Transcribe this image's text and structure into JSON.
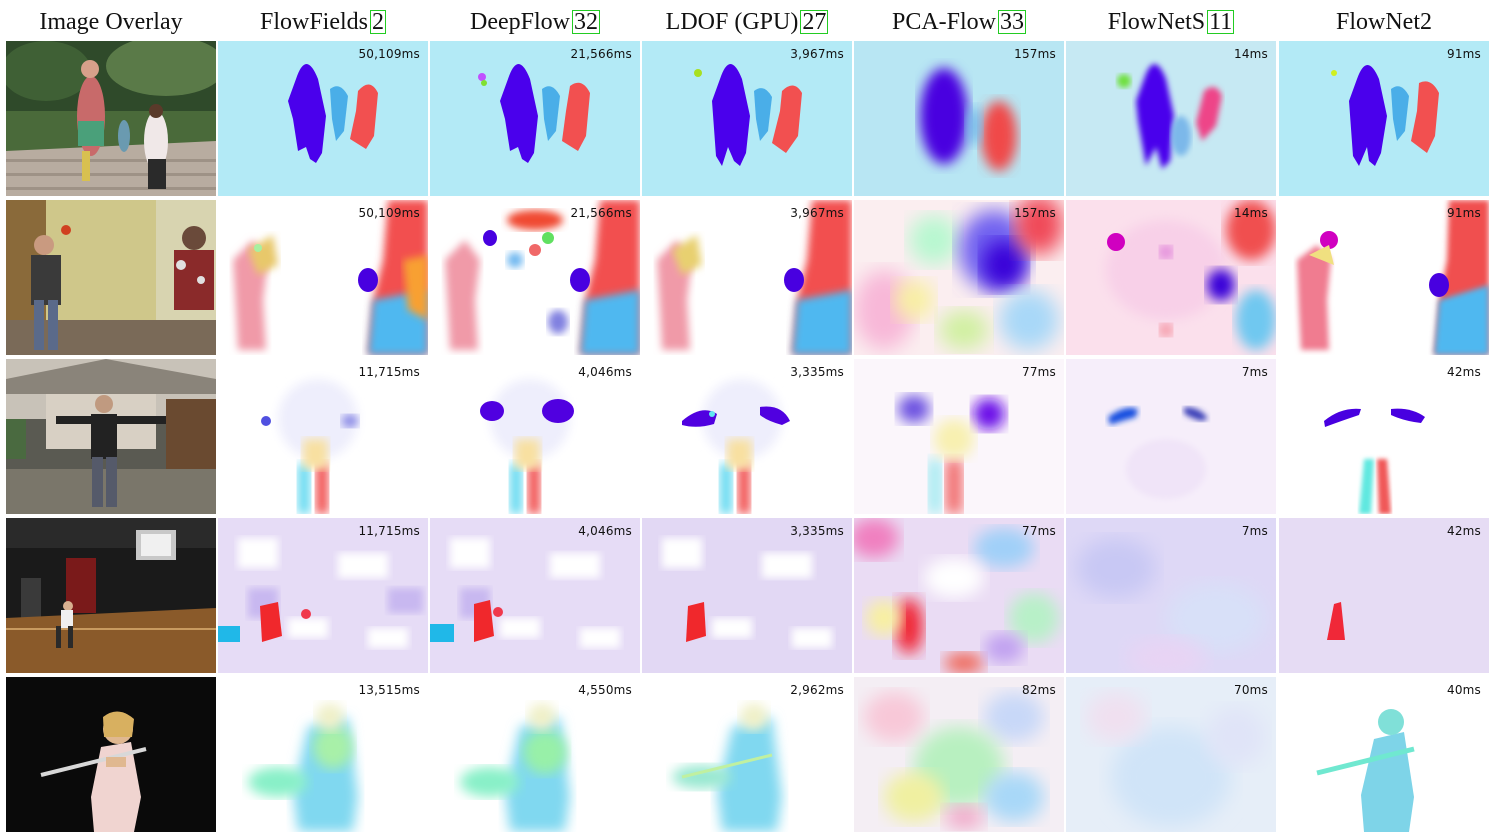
{
  "columns": [
    {
      "title": "Image Overlay",
      "ref": ""
    },
    {
      "title": "FlowFields ",
      "ref": "2"
    },
    {
      "title": "DeepFlow ",
      "ref": "32"
    },
    {
      "title": "LDOF (GPU) ",
      "ref": "27"
    },
    {
      "title": "PCA-Flow ",
      "ref": "33"
    },
    {
      "title": "FlowNetS ",
      "ref": "11"
    },
    {
      "title": "FlowNet2",
      "ref": ""
    }
  ],
  "rows": [
    {
      "scene": "children-garden",
      "times": [
        "50,109ms",
        "21,566ms",
        "3,967ms",
        "157ms",
        "14ms",
        "91ms"
      ]
    },
    {
      "scene": "juggler-hallway",
      "times": [
        "50,109ms",
        "21,566ms",
        "3,967ms",
        "157ms",
        "14ms",
        "91ms"
      ]
    },
    {
      "scene": "man-arms-out",
      "times": [
        "11,715ms",
        "4,046ms",
        "3,335ms",
        "77ms",
        "7ms",
        "42ms"
      ]
    },
    {
      "scene": "basketball-gym",
      "times": [
        "11,715ms",
        "4,046ms",
        "3,335ms",
        "77ms",
        "7ms",
        "42ms"
      ]
    },
    {
      "scene": "girl-flute",
      "times": [
        "13,515ms",
        "4,550ms",
        "2,962ms",
        "82ms",
        "70ms",
        "40ms"
      ]
    }
  ],
  "colors": {
    "ref_box": "#22cc22"
  }
}
